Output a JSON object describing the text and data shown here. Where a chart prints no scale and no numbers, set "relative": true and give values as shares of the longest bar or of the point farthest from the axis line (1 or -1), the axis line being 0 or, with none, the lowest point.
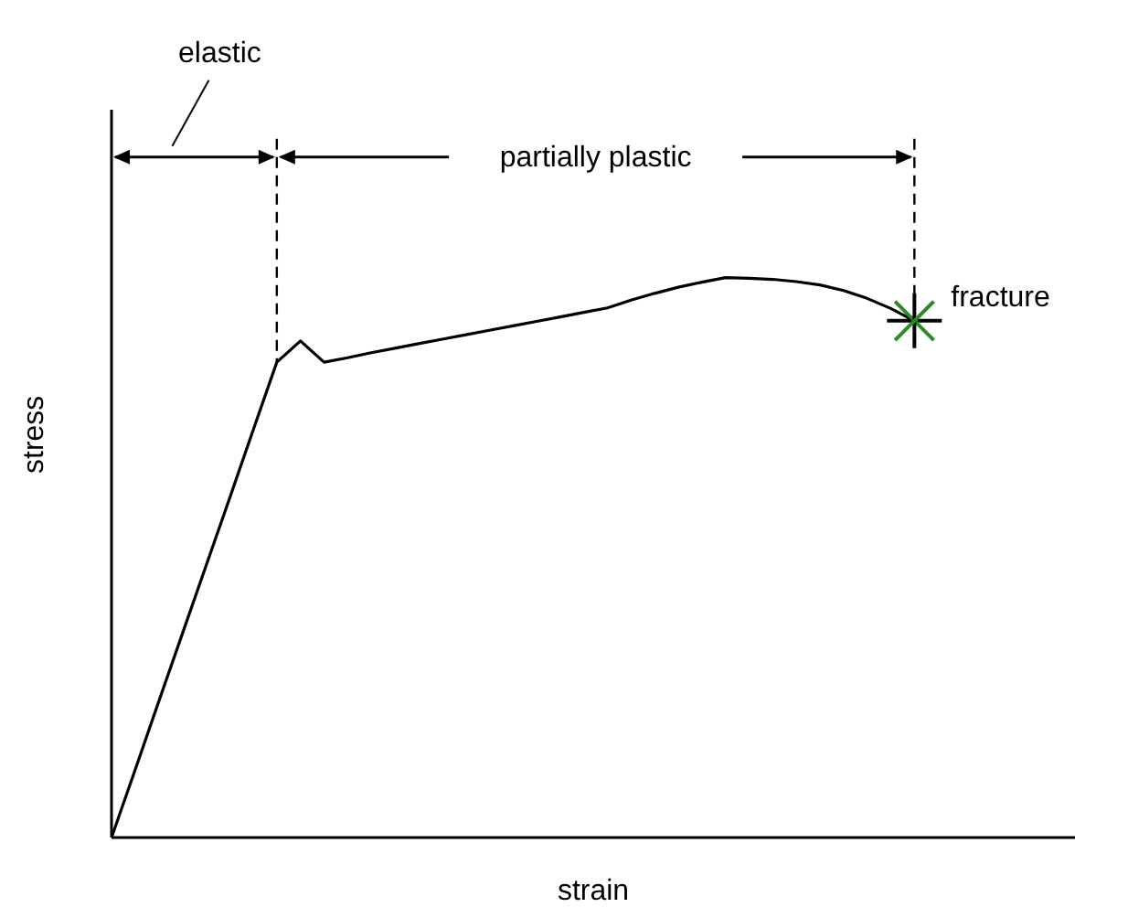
{
  "chart_data": {
    "type": "line",
    "relative": true,
    "xlabel": "strain",
    "ylabel": "stress",
    "color": "#000000",
    "categories": [
      null,
      null,
      null,
      null,
      null,
      null,
      null,
      null,
      null,
      null,
      null,
      null,
      null,
      null,
      null,
      null,
      null,
      null,
      null,
      null,
      null,
      null,
      null,
      null,
      null,
      null,
      null,
      null,
      null,
      null,
      null,
      null,
      null,
      null,
      null
    ],
    "values": [
      0,
      0.121,
      0.243,
      0.364,
      0.485,
      0.606,
      0.728,
      0.849,
      0.887,
      0.849,
      0.857,
      0.866,
      0.874,
      0.882,
      0.89,
      0.898,
      0.906,
      0.914,
      0.922,
      0.93,
      0.938,
      0.946,
      0.96,
      0.972,
      0.983,
      0.992,
      1,
      0.999,
      0.997,
      0.993,
      0.987,
      0.977,
      0.963,
      0.945,
      0.923
    ],
    "grid": false,
    "legend": false,
    "marker": "none",
    "line_style": "solid",
    "annotations": [
      "elastic",
      "partially plastic",
      "fracture"
    ]
  }
}
